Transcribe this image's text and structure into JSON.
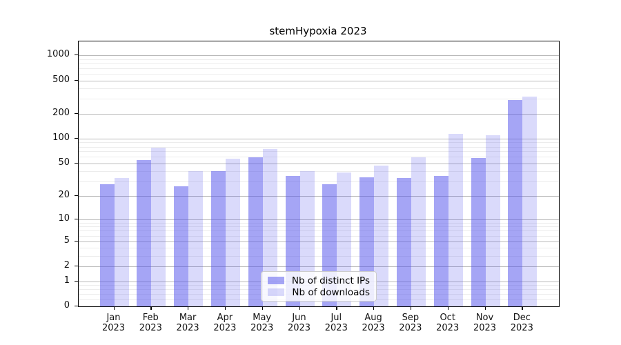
{
  "title": "stemHypoxia 2023",
  "legend": {
    "items": [
      {
        "label": "Nb of distinct IPs"
      },
      {
        "label": "Nb of downloads"
      }
    ]
  },
  "colors": {
    "bar_ips": "rgba(82,82,235,0.52)",
    "bar_downloads": "rgba(82,82,235,0.21)",
    "grid_major": "#b9b9b9",
    "grid_minor": "#ececec",
    "axis": "#000000"
  },
  "chart_data": {
    "type": "bar",
    "title": "stemHypoxia 2023",
    "scale": "log10(value+1)",
    "grid": true,
    "legend_position": "lower center",
    "categories": [
      "Jan",
      "Feb",
      "Mar",
      "Apr",
      "May",
      "Jun",
      "Jul",
      "Aug",
      "Sep",
      "Oct",
      "Nov",
      "Dec"
    ],
    "year": "2023",
    "series": [
      {
        "name": "Nb of distinct IPs",
        "values": [
          28,
          55,
          26,
          40,
          59,
          35,
          28,
          34,
          33,
          35,
          58,
          290
        ]
      },
      {
        "name": "Nb of downloads",
        "values": [
          33,
          78,
          40,
          57,
          75,
          40,
          39,
          47,
          59,
          115,
          110,
          320
        ]
      }
    ],
    "y_major_ticks": [
      1000,
      500,
      200,
      100,
      50,
      20,
      10,
      5,
      2,
      1,
      0
    ],
    "y_minor_ticks": [
      0.2,
      0.4,
      0.6,
      0.8,
      3,
      4,
      6,
      7,
      8,
      9,
      30,
      40,
      60,
      70,
      80,
      90,
      300,
      400,
      600,
      700,
      800,
      900
    ],
    "ylim": [
      0,
      1460
    ],
    "xlabel": "",
    "ylabel": ""
  }
}
